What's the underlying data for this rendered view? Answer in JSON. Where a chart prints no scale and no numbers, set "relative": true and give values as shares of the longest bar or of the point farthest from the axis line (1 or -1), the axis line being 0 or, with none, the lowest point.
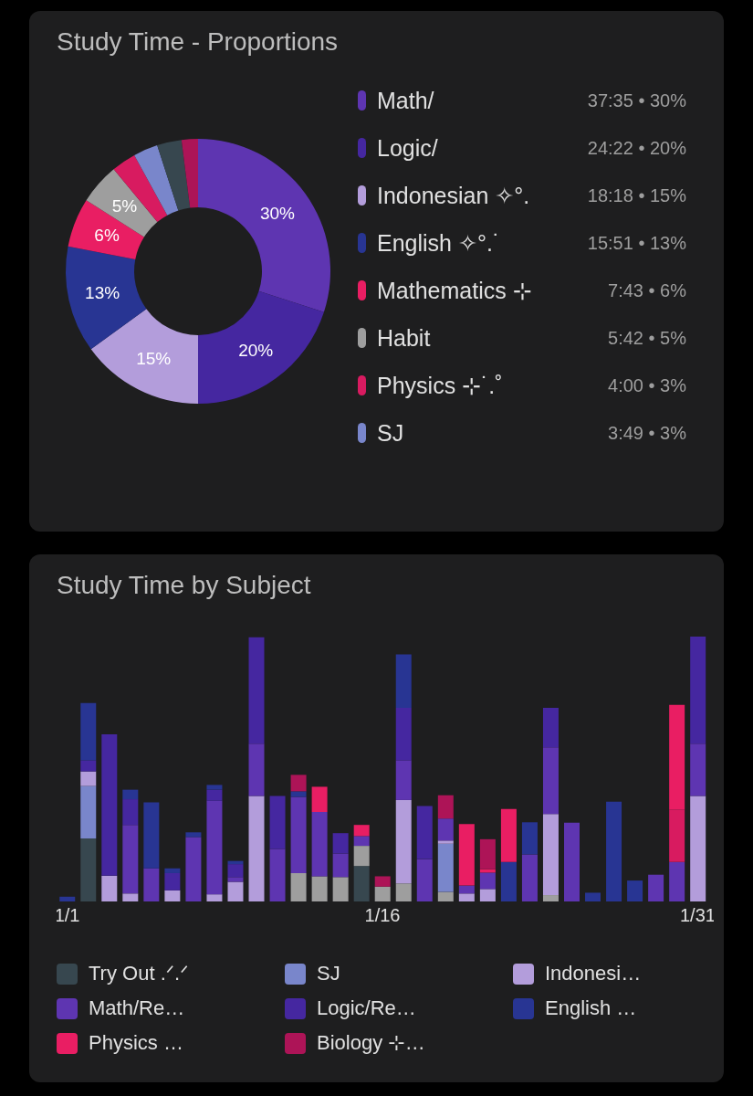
{
  "chart_data": [
    {
      "type": "donut",
      "title": "Study Time - Proportions",
      "categories": [
        "Math/",
        "Logic/",
        "Indonesian ✧°.",
        "English ✧°.˙",
        "Mathematics ⊹",
        "Habit",
        "Physics ⊹˙.˚",
        "SJ",
        null,
        null
      ],
      "values": [
        30,
        20,
        15,
        13,
        6,
        5,
        3,
        3,
        3,
        2
      ],
      "colors": [
        "#5e35b1",
        "#4527a0",
        "#b39ddb",
        "#283593",
        "#e91e63",
        "#9e9e9e",
        "#d81b60",
        "#7986cb",
        "#37474f",
        "#ad1457"
      ],
      "value_labels": [
        "30%",
        "20%",
        "15%",
        "13%",
        "6%",
        "5%",
        null,
        null,
        null,
        null
      ],
      "annotations": [
        "37:35 • 30%",
        "24:22 • 20%",
        "18:18 • 15%",
        "15:51 • 13%",
        "7:43 • 6%",
        "5:42 • 5%",
        "4:00 • 3%",
        "3:49 • 3%"
      ],
      "legend": "right"
    },
    {
      "type": "bar",
      "title": "Study Time by Subject",
      "stacked": true,
      "relative": true,
      "tick_labels": "x",
      "legend": "bottom",
      "categories": [
        "1/1",
        null,
        null,
        null,
        null,
        null,
        null,
        null,
        null,
        null,
        null,
        null,
        null,
        null,
        null,
        "1/16",
        null,
        null,
        null,
        null,
        null,
        null,
        null,
        null,
        null,
        null,
        null,
        null,
        null,
        null,
        "1/31"
      ],
      "series": [
        {
          "name": "Try Out .ᐟ.ᐟ",
          "color": "#37474f",
          "values": [
            null,
            0.238,
            null,
            null,
            null,
            null,
            null,
            null,
            null,
            null,
            null,
            null,
            null,
            null,
            0.134,
            null,
            null,
            null,
            null,
            null,
            null,
            null,
            null,
            null,
            null,
            null,
            null,
            null,
            null,
            null,
            null
          ]
        },
        {
          "color": "#9e9e9e",
          "values": [
            null,
            null,
            null,
            null,
            null,
            null,
            null,
            null,
            null,
            null,
            null,
            0.107,
            0.095,
            0.092,
            0.076,
            0.056,
            0.068,
            null,
            0.036,
            null,
            null,
            null,
            null,
            0.024,
            null,
            null,
            null,
            null,
            null,
            null,
            null
          ]
        },
        {
          "name": "SJ",
          "color": "#7986cb",
          "values": [
            null,
            0.198,
            null,
            null,
            null,
            null,
            null,
            null,
            null,
            null,
            null,
            null,
            null,
            null,
            null,
            null,
            null,
            null,
            0.182,
            null,
            null,
            null,
            null,
            null,
            null,
            null,
            null,
            null,
            null,
            null,
            null
          ]
        },
        {
          "name": "Indonesi…",
          "color": "#b39ddb",
          "values": [
            null,
            0.055,
            0.097,
            0.03,
            null,
            0.042,
            null,
            0.027,
            0.074,
            0.398,
            null,
            null,
            null,
            null,
            null,
            null,
            0.315,
            null,
            0.012,
            0.03,
            0.047,
            null,
            null,
            0.306,
            null,
            null,
            null,
            null,
            null,
            null,
            0.398
          ]
        },
        {
          "name": "Math/Re…",
          "color": "#5e35b1",
          "values": [
            null,
            null,
            null,
            0.259,
            0.125,
            null,
            0.243,
            0.353,
            0.018,
            0.198,
            0.198,
            0.288,
            0.243,
            0.089,
            0.037,
            null,
            0.15,
            0.16,
            0.083,
            0.03,
            0.062,
            null,
            0.178,
            0.252,
            0.297,
            null,
            null,
            null,
            0.101,
            0.149,
            0.198
          ]
        },
        {
          "name": "Logic/Re…",
          "color": "#4527a0",
          "values": [
            null,
            0.042,
            0.534,
            0.097,
            null,
            0.065,
            null,
            0.042,
            0.049,
            0.401,
            0.2,
            null,
            null,
            0.077,
            null,
            null,
            0.198,
            0.2,
            null,
            null,
            null,
            null,
            null,
            0.149,
            null,
            null,
            null,
            null,
            null,
            null,
            0.404
          ]
        },
        {
          "name": "English …",
          "color": "#283593",
          "values": [
            0.018,
            0.216,
            null,
            0.036,
            0.249,
            0.018,
            0.018,
            0.018,
            0.012,
            null,
            null,
            0.021,
            null,
            null,
            null,
            null,
            0.202,
            null,
            null,
            null,
            null,
            0.149,
            0.121,
            null,
            null,
            0.033,
            0.377,
            0.079,
            null,
            null,
            null
          ]
        },
        {
          "color": "#d81b60",
          "values": [
            null,
            null,
            null,
            null,
            null,
            null,
            null,
            null,
            null,
            null,
            null,
            null,
            null,
            null,
            null,
            null,
            null,
            null,
            null,
            null,
            null,
            null,
            null,
            null,
            null,
            null,
            null,
            null,
            null,
            0.198,
            null
          ]
        },
        {
          "name": "Physics …",
          "color": "#e91e63",
          "values": [
            null,
            null,
            null,
            null,
            null,
            null,
            null,
            null,
            null,
            null,
            null,
            null,
            0.095,
            null,
            0.042,
            null,
            null,
            null,
            null,
            0.232,
            0.013,
            0.2,
            null,
            null,
            null,
            null,
            null,
            null,
            null,
            0.395,
            null
          ]
        },
        {
          "name": "Biology ⊹…",
          "color": "#ad1457",
          "values": [
            null,
            null,
            null,
            null,
            null,
            null,
            null,
            null,
            null,
            null,
            null,
            0.062,
            null,
            null,
            null,
            0.039,
            null,
            null,
            0.088,
            null,
            0.113,
            null,
            null,
            null,
            null,
            null,
            null,
            null,
            null,
            null,
            null
          ]
        }
      ]
    }
  ]
}
